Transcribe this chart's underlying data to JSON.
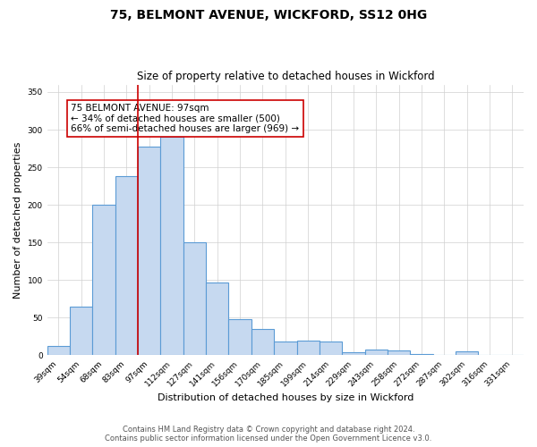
{
  "title": "75, BELMONT AVENUE, WICKFORD, SS12 0HG",
  "subtitle": "Size of property relative to detached houses in Wickford",
  "xlabel": "Distribution of detached houses by size in Wickford",
  "ylabel": "Number of detached properties",
  "footer_line1": "Contains HM Land Registry data © Crown copyright and database right 2024.",
  "footer_line2": "Contains public sector information licensed under the Open Government Licence v3.0.",
  "bar_labels": [
    "39sqm",
    "54sqm",
    "68sqm",
    "83sqm",
    "97sqm",
    "112sqm",
    "127sqm",
    "141sqm",
    "156sqm",
    "170sqm",
    "185sqm",
    "199sqm",
    "214sqm",
    "229sqm",
    "243sqm",
    "258sqm",
    "272sqm",
    "287sqm",
    "302sqm",
    "316sqm",
    "331sqm"
  ],
  "bar_values": [
    13,
    65,
    200,
    238,
    278,
    290,
    150,
    97,
    48,
    35,
    18,
    20,
    18,
    4,
    8,
    7,
    2,
    0,
    5,
    0,
    0
  ],
  "bar_color": "#c6d9f0",
  "bar_edge_color": "#5b9bd5",
  "bar_edge_width": 0.8,
  "highlight_x_label": "97sqm",
  "highlight_line_color": "#cc0000",
  "annotation_text_line1": "75 BELMONT AVENUE: 97sqm",
  "annotation_text_line2": "← 34% of detached houses are smaller (500)",
  "annotation_text_line3": "66% of semi-detached houses are larger (969) →",
  "annotation_box_edge_color": "#cc0000",
  "annotation_box_face_color": "#ffffff",
  "ylim": [
    0,
    360
  ],
  "yticks": [
    0,
    50,
    100,
    150,
    200,
    250,
    300,
    350
  ],
  "bg_color": "#ffffff",
  "grid_color": "#d0d0d0",
  "title_fontsize": 10,
  "subtitle_fontsize": 8.5,
  "axis_label_fontsize": 8,
  "tick_fontsize": 6.5,
  "annotation_fontsize": 7.5,
  "footer_fontsize": 6
}
